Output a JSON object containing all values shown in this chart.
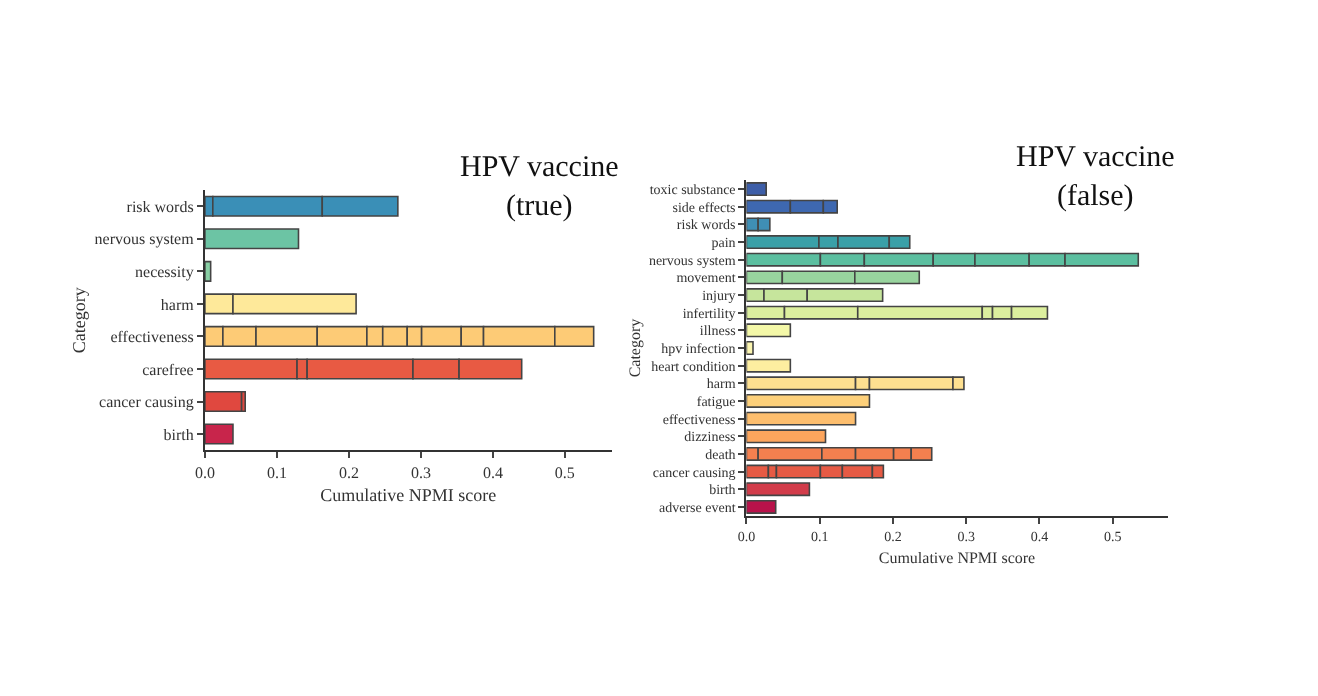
{
  "chart_data": [
    {
      "type": "bar",
      "orientation": "horizontal",
      "stacked": true,
      "title": "HPV vaccine\n(true)",
      "xlabel": "Cumulative NPMI score",
      "ylabel": "Category",
      "categories": [
        "risk words",
        "nervous system",
        "necessity",
        "harm",
        "effectiveness",
        "carefree",
        "cancer causing",
        "birth"
      ],
      "xlim": [
        0,
        0.565
      ],
      "xticks": [
        {
          "value": 0,
          "label": "0.0"
        },
        0.1,
        0.2,
        0.3,
        0.4,
        0.5
      ],
      "series": [
        {
          "values": [
            0.011,
            0.13,
            0.008,
            0.039,
            0.025,
            0.128,
            0.051,
            0.039
          ],
          "colors": [
            "#3a8fb7",
            "#6cc4a4",
            "#88cfa4",
            "#fee99a",
            "#fdcb76",
            "#e85a43",
            "#e0483f",
            "#c8254b"
          ]
        },
        {
          "values": [
            0.152,
            null,
            null,
            0.171,
            0.046,
            0.014,
            0.005,
            null
          ],
          "colors": [
            "#3a8fb7",
            null,
            null,
            "#fee99a",
            "#fdcb76",
            "#e85a43",
            "#e0483f",
            null
          ]
        },
        {
          "values": [
            0.105,
            null,
            null,
            null,
            0.085,
            0.147,
            null,
            null
          ],
          "colors": [
            "#3a8fb7",
            null,
            null,
            null,
            "#fdcb76",
            "#e85a43",
            null,
            null
          ]
        },
        {
          "values": [
            null,
            null,
            null,
            null,
            0.069,
            0.064,
            null,
            null
          ],
          "colors": [
            null,
            null,
            null,
            null,
            "#fdcb76",
            "#e85a43",
            null,
            null
          ]
        },
        {
          "values": [
            null,
            null,
            null,
            null,
            0.022,
            0.087,
            null,
            null
          ],
          "colors": [
            null,
            null,
            null,
            null,
            "#fdcb76",
            "#e85a43",
            null,
            null
          ]
        },
        {
          "values": [
            null,
            null,
            null,
            null,
            0.034,
            null,
            null,
            null
          ],
          "color": "#fdcb76"
        },
        {
          "values": [
            null,
            null,
            null,
            null,
            0.02,
            null,
            null,
            null
          ],
          "color": "#fdcb76"
        },
        {
          "values": [
            null,
            null,
            null,
            null,
            0.055,
            null,
            null,
            null
          ],
          "color": "#fdcb76"
        },
        {
          "values": [
            null,
            null,
            null,
            null,
            0.031,
            null,
            null,
            null
          ],
          "color": "#fdcb76"
        },
        {
          "values": [
            null,
            null,
            null,
            null,
            0.099,
            null,
            null,
            null
          ],
          "color": "#fdcb76"
        },
        {
          "values": [
            null,
            null,
            null,
            null,
            0.054,
            null,
            null,
            null
          ],
          "color": "#fdcb76"
        }
      ]
    },
    {
      "type": "bar",
      "orientation": "horizontal",
      "stacked": true,
      "title": "HPV vaccine\n(false)",
      "xlabel": "Cumulative NPMI score",
      "ylabel": "Category",
      "categories": [
        "toxic substance",
        "side effects",
        "risk words",
        "pain",
        "nervous system",
        "movement",
        "injury",
        "infertility",
        "illness",
        "hpv infection",
        "heart condition",
        "harm",
        "fatigue",
        "effectiveness",
        "dizziness",
        "death",
        "cancer causing",
        "birth",
        "adverse event"
      ],
      "xlim": [
        0,
        0.575
      ],
      "xticks": [
        {
          "value": 0,
          "label": "0.0"
        },
        0.1,
        0.2,
        0.3,
        0.4,
        0.5
      ],
      "series": [
        {
          "values": [
            0.027,
            0.06,
            0.016,
            0.099,
            0.101,
            0.049,
            0.024,
            0.052,
            0.06,
            0.009,
            0.06,
            0.149,
            0.168,
            0.149,
            0.108,
            0.016,
            0.03,
            0.086,
            0.04
          ],
          "colors": [
            "#3d5ea8",
            "#3e68b0",
            "#3f8fb5",
            "#3aa0a8",
            "#5cbfa0",
            "#98d49e",
            "#c6e59c",
            "#dcef9e",
            "#f4f8a8",
            "#fbf5b0",
            "#fdeea0",
            "#fee090",
            "#fdd07a",
            "#fdbe6e",
            "#fca55d",
            "#f4804f",
            "#e65a44",
            "#d23c4a",
            "#b8124a"
          ]
        },
        {
          "values": [
            null,
            0.045,
            0.016,
            0.026,
            0.06,
            0.099,
            0.059,
            0.1,
            null,
            null,
            null,
            0.019,
            null,
            null,
            null,
            0.087,
            0.011,
            null,
            null
          ],
          "colors": [
            null,
            "#3e68b0",
            "#3f8fb5",
            "#3aa0a8",
            "#5cbfa0",
            "#98d49e",
            "#c6e59c",
            "#dcef9e",
            null,
            null,
            null,
            "#fee090",
            null,
            null,
            null,
            "#f4804f",
            "#e65a44",
            null,
            null
          ]
        },
        {
          "values": [
            null,
            0.019,
            null,
            0.07,
            0.094,
            0.088,
            0.103,
            0.17,
            null,
            null,
            null,
            0.114,
            null,
            null,
            null,
            0.046,
            0.06,
            null,
            null
          ],
          "colors": [
            null,
            "#3e68b0",
            null,
            "#3aa0a8",
            "#5cbfa0",
            "#98d49e",
            "#c6e59c",
            "#dcef9e",
            null,
            null,
            null,
            "#fee090",
            null,
            null,
            null,
            "#f4804f",
            "#e65a44",
            null,
            null
          ]
        },
        {
          "values": [
            null,
            null,
            null,
            0.028,
            0.057,
            null,
            null,
            0.014,
            null,
            null,
            null,
            0.015,
            null,
            null,
            null,
            0.052,
            0.03,
            null,
            null
          ],
          "colors": [
            null,
            null,
            null,
            "#3aa0a8",
            "#5cbfa0",
            null,
            null,
            "#dcef9e",
            null,
            null,
            null,
            "#fee090",
            null,
            null,
            null,
            "#f4804f",
            "#e65a44",
            null,
            null
          ]
        },
        {
          "values": [
            null,
            null,
            null,
            null,
            0.074,
            null,
            null,
            0.026,
            null,
            null,
            null,
            null,
            null,
            null,
            null,
            0.024,
            0.041,
            null,
            null
          ],
          "colors": [
            null,
            null,
            null,
            null,
            "#5cbfa0",
            null,
            null,
            "#dcef9e",
            null,
            null,
            null,
            null,
            null,
            null,
            null,
            "#f4804f",
            "#e65a44",
            null,
            null
          ]
        },
        {
          "values": [
            null,
            null,
            null,
            null,
            0.049,
            null,
            null,
            0.049,
            null,
            null,
            null,
            null,
            null,
            null,
            null,
            0.028,
            0.015,
            null,
            null
          ],
          "colors": [
            null,
            null,
            null,
            null,
            "#5cbfa0",
            null,
            null,
            "#dcef9e",
            null,
            null,
            null,
            null,
            null,
            null,
            null,
            "#f4804f",
            "#e65a44",
            null,
            null
          ]
        },
        {
          "values": [
            null,
            null,
            null,
            null,
            0.1,
            null,
            null,
            null,
            null,
            null,
            null,
            null,
            null,
            null,
            null,
            null,
            null,
            null,
            null
          ],
          "color": "#5cbfa0"
        }
      ]
    }
  ]
}
